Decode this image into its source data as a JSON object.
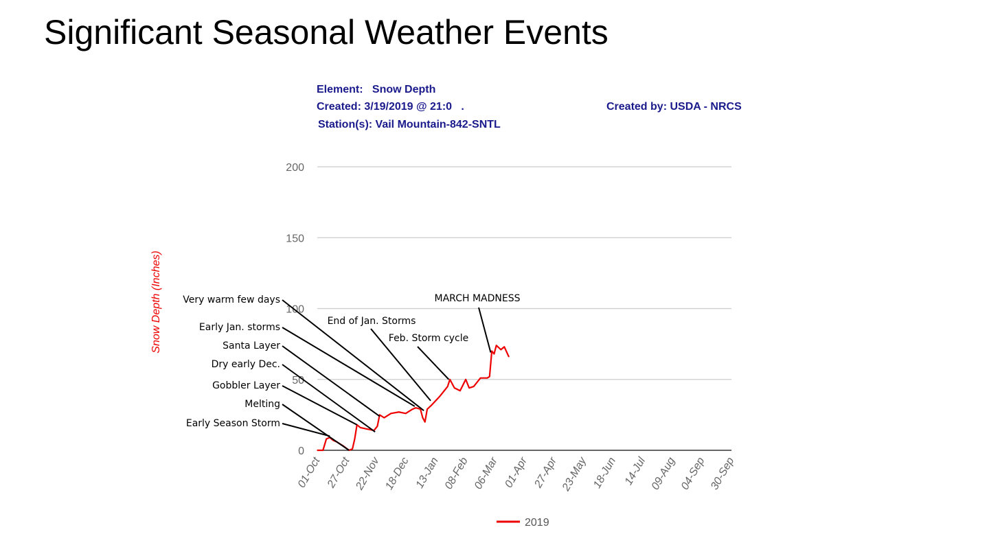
{
  "slide_title": "Significant Seasonal Weather Events",
  "header": {
    "element": "Element:   Snow Depth",
    "created": "Created: 3/19/2019 @ 21:0   .",
    "created_by": "Created by: USDA - NRCS",
    "stations": "Station(s): Vail Mountain-842-SNTL"
  },
  "chart_data": {
    "type": "line",
    "title": "Snow Depth",
    "ylabel": "Snow Depth (Inches)",
    "xlabel": "",
    "ylim": [
      0,
      200
    ],
    "yticks": [
      0,
      50,
      100,
      150,
      200
    ],
    "xlim_days": [
      0,
      365
    ],
    "xtick_labels": [
      "01-Oct",
      "27-Oct",
      "22-Nov",
      "18-Dec",
      "13-Jan",
      "08-Feb",
      "06-Mar",
      "01-Apr",
      "27-Apr",
      "23-May",
      "18-Jun",
      "14-Jul",
      "09-Aug",
      "04-Sep",
      "30-Sep"
    ],
    "grid": true,
    "legend_position": "bottom",
    "series": [
      {
        "name": "2019",
        "color": "#ee0000",
        "x_days": [
          0,
          5,
          8,
          11,
          14,
          17,
          23,
          28,
          31,
          33,
          35,
          38,
          44,
          50,
          53,
          55,
          59,
          65,
          72,
          78,
          84,
          87,
          91,
          93,
          95,
          97,
          101,
          108,
          115,
          117,
          121,
          126,
          131,
          134,
          138,
          144,
          150,
          152,
          154,
          156,
          158,
          162,
          165,
          169
        ],
        "values": [
          0,
          0,
          8,
          9,
          7,
          6,
          3,
          0,
          1,
          8,
          18,
          16,
          15,
          14,
          17,
          25,
          23,
          26,
          27,
          26,
          29,
          30,
          29,
          23,
          20,
          29,
          32,
          38,
          45,
          50,
          44,
          42,
          50,
          44,
          45,
          51,
          51,
          52,
          70,
          68,
          74,
          71,
          73,
          66
        ]
      }
    ],
    "annotations": [
      {
        "text": "Very warm few days",
        "day": 94,
        "value": 28
      },
      {
        "text": "Early Jan. storms",
        "day": 86,
        "value": 31
      },
      {
        "text": "Santa Layer",
        "day": 55,
        "value": 24
      },
      {
        "text": "Dry early Dec.",
        "day": 51,
        "value": 13
      },
      {
        "text": "Gobbler Layer",
        "day": 35,
        "value": 18
      },
      {
        "text": "Melting",
        "day": 28,
        "value": 0
      },
      {
        "text": "Early Season Storm",
        "day": 11,
        "value": 10
      },
      {
        "text": "End of Jan. Storms",
        "day": 100,
        "value": 35
      },
      {
        "text": "Feb. Storm cycle",
        "day": 116,
        "value": 50
      },
      {
        "text": "MARCH MADNESS",
        "day": 153,
        "value": 69
      }
    ]
  }
}
